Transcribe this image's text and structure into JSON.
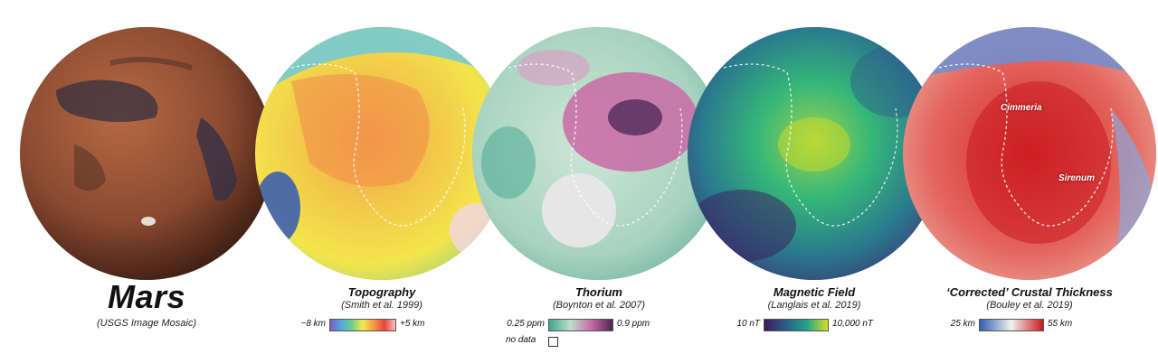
{
  "panels": [
    {
      "title": "Mars",
      "source": "(USGS Image Mosaic)"
    },
    {
      "title": "Topography",
      "source": "(Smith et al. 1999)",
      "legend": {
        "low": "−8 km",
        "high": "+5 km"
      }
    },
    {
      "title": "Thorium",
      "source": "(Boynton et al. 2007)",
      "legend": {
        "low": "0.25 ppm",
        "high": "0.9 ppm",
        "nodata": "no data"
      }
    },
    {
      "title": "Magnetic Field",
      "source": "(Langlais et al. 2019)",
      "legend": {
        "low": "10 nT",
        "high": "10,000 nT"
      }
    },
    {
      "title": "‘Corrected’ Crustal Thickness",
      "source": "(Bouley et al. 2019)",
      "legend": {
        "low": "25 km",
        "high": "55 km"
      },
      "region_labels": [
        "Cimmeria",
        "Sirenum"
      ]
    }
  ],
  "colors": {
    "topography": [
      "#7d5bc4",
      "#4fa8e0",
      "#6fd08a",
      "#f5e84a",
      "#f49b4a",
      "#e8443a",
      "#f6c1c1"
    ],
    "thorium": [
      "#3fa58e",
      "#bde0c8",
      "#c96aa6",
      "#4b2454"
    ],
    "magnetic": [
      "#3a1a5a",
      "#2e5c8a",
      "#20a387",
      "#d9e021"
    ],
    "crustal": [
      "#2f5fb3",
      "#f3f0ee",
      "#c8191d"
    ]
  }
}
